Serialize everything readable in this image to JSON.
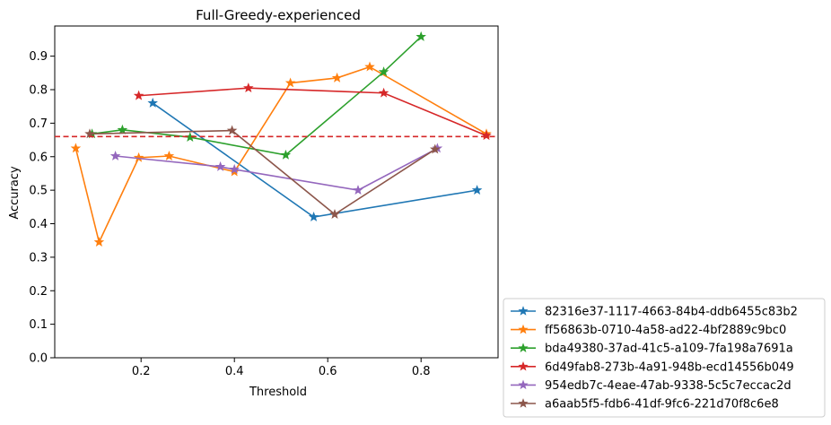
{
  "chart_data": {
    "type": "line",
    "title": "Full-Greedy-experienced",
    "xlabel": "Threshold",
    "ylabel": "Accuracy",
    "xlim": [
      0.015,
      0.965
    ],
    "ylim": [
      0.0,
      0.99
    ],
    "xticks": [
      0.2,
      0.4,
      0.6,
      0.8
    ],
    "xtick_labels": [
      "0.2",
      "0.4",
      "0.6",
      "0.8"
    ],
    "yticks": [
      0.0,
      0.1,
      0.2,
      0.3,
      0.4,
      0.5,
      0.6,
      0.7,
      0.8,
      0.9
    ],
    "ytick_labels": [
      "0.0",
      "0.1",
      "0.2",
      "0.3",
      "0.4",
      "0.5",
      "0.6",
      "0.7",
      "0.8",
      "0.9"
    ],
    "grid": false,
    "marker": "star",
    "reference_line": {
      "y": 0.66,
      "color": "#d62728",
      "style": "dashed"
    },
    "legend": {
      "placement": "outside-lower-right"
    },
    "series": [
      {
        "name": "82316e37-1117-4663-84b4-ddb6455c83b2",
        "color": "#1f77b4",
        "x": [
          0.225,
          0.57,
          0.92
        ],
        "y": [
          0.76,
          0.42,
          0.5
        ]
      },
      {
        "name": "ff56863b-0710-4a58-ad22-4bf2889c9bc0",
        "color": "#ff7f0e",
        "x": [
          0.06,
          0.11,
          0.195,
          0.26,
          0.4,
          0.52,
          0.62,
          0.69,
          0.94
        ],
        "y": [
          0.625,
          0.345,
          0.597,
          0.602,
          0.555,
          0.82,
          0.835,
          0.868,
          0.668
        ]
      },
      {
        "name": "bda49380-37ad-41c5-a109-7fa198a7691a",
        "color": "#2ca02c",
        "x": [
          0.095,
          0.16,
          0.305,
          0.51,
          0.72,
          0.8
        ],
        "y": [
          0.668,
          0.68,
          0.658,
          0.605,
          0.853,
          0.958
        ]
      },
      {
        "name": "6d49fab8-273b-4a91-948b-ecd14556b049",
        "color": "#d62728",
        "x": [
          0.195,
          0.43,
          0.72,
          0.94
        ],
        "y": [
          0.782,
          0.805,
          0.79,
          0.663
        ]
      },
      {
        "name": "954edb7c-4eae-47ab-9338-5c5c7eccac2d",
        "color": "#9467bd",
        "x": [
          0.145,
          0.37,
          0.4,
          0.665,
          0.835
        ],
        "y": [
          0.602,
          0.57,
          0.562,
          0.5,
          0.625
        ]
      },
      {
        "name": "a6aab5f5-fdb6-41df-9fc6-221d70f8c6e8",
        "color": "#8c564b",
        "x": [
          0.09,
          0.395,
          0.615,
          0.83
        ],
        "y": [
          0.668,
          0.678,
          0.428,
          0.622
        ]
      }
    ]
  }
}
